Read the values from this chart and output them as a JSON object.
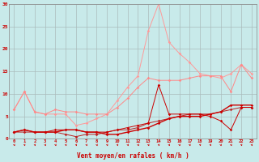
{
  "x": [
    0,
    1,
    2,
    3,
    4,
    5,
    6,
    7,
    8,
    9,
    10,
    11,
    12,
    13,
    14,
    15,
    16,
    17,
    18,
    19,
    20,
    21,
    22,
    23
  ],
  "line1": [
    1.5,
    2.0,
    1.5,
    1.5,
    1.5,
    2.0,
    2.0,
    1.5,
    1.5,
    1.0,
    1.0,
    1.5,
    2.0,
    2.5,
    3.5,
    4.5,
    5.0,
    5.0,
    5.0,
    5.5,
    6.0,
    7.5,
    7.5,
    7.5
  ],
  "line2": [
    1.5,
    2.0,
    1.5,
    1.5,
    2.0,
    2.0,
    2.0,
    1.5,
    1.5,
    1.5,
    2.0,
    2.5,
    3.0,
    3.5,
    12.0,
    5.5,
    5.5,
    5.5,
    5.5,
    5.0,
    4.0,
    2.0,
    7.0,
    7.0
  ],
  "line3": [
    6.5,
    10.5,
    6.0,
    5.5,
    6.5,
    6.0,
    6.0,
    5.5,
    5.5,
    5.5,
    7.0,
    9.0,
    11.5,
    13.5,
    13.0,
    13.0,
    13.0,
    13.5,
    14.0,
    14.0,
    14.0,
    10.5,
    16.5,
    13.5
  ],
  "line4": [
    1.5,
    1.5,
    1.5,
    1.5,
    1.5,
    1.0,
    0.5,
    1.0,
    1.0,
    1.5,
    2.0,
    2.0,
    2.5,
    3.5,
    4.0,
    4.5,
    5.0,
    5.5,
    5.5,
    5.5,
    6.0,
    6.5,
    7.0,
    7.0
  ],
  "line5": [
    6.5,
    10.5,
    6.0,
    5.5,
    5.5,
    5.5,
    3.0,
    3.5,
    4.5,
    5.5,
    8.5,
    11.5,
    14.0,
    24.0,
    30.0,
    21.5,
    19.0,
    17.0,
    14.5,
    14.0,
    13.5,
    14.5,
    16.5,
    14.5
  ],
  "bg_color": "#c8eaea",
  "grid_color": "#aabbbb",
  "line1_color": "#cc0000",
  "line2_color": "#cc0000",
  "line3_color": "#ff8888",
  "line4_color": "#bb2222",
  "line5_color": "#ff9999",
  "xlabel": "Vent moyen/en rafales ( km/h )",
  "ylim": [
    0,
    30
  ],
  "xlim_min": -0.5,
  "xlim_max": 23.5,
  "yticks": [
    0,
    5,
    10,
    15,
    20,
    25,
    30
  ]
}
